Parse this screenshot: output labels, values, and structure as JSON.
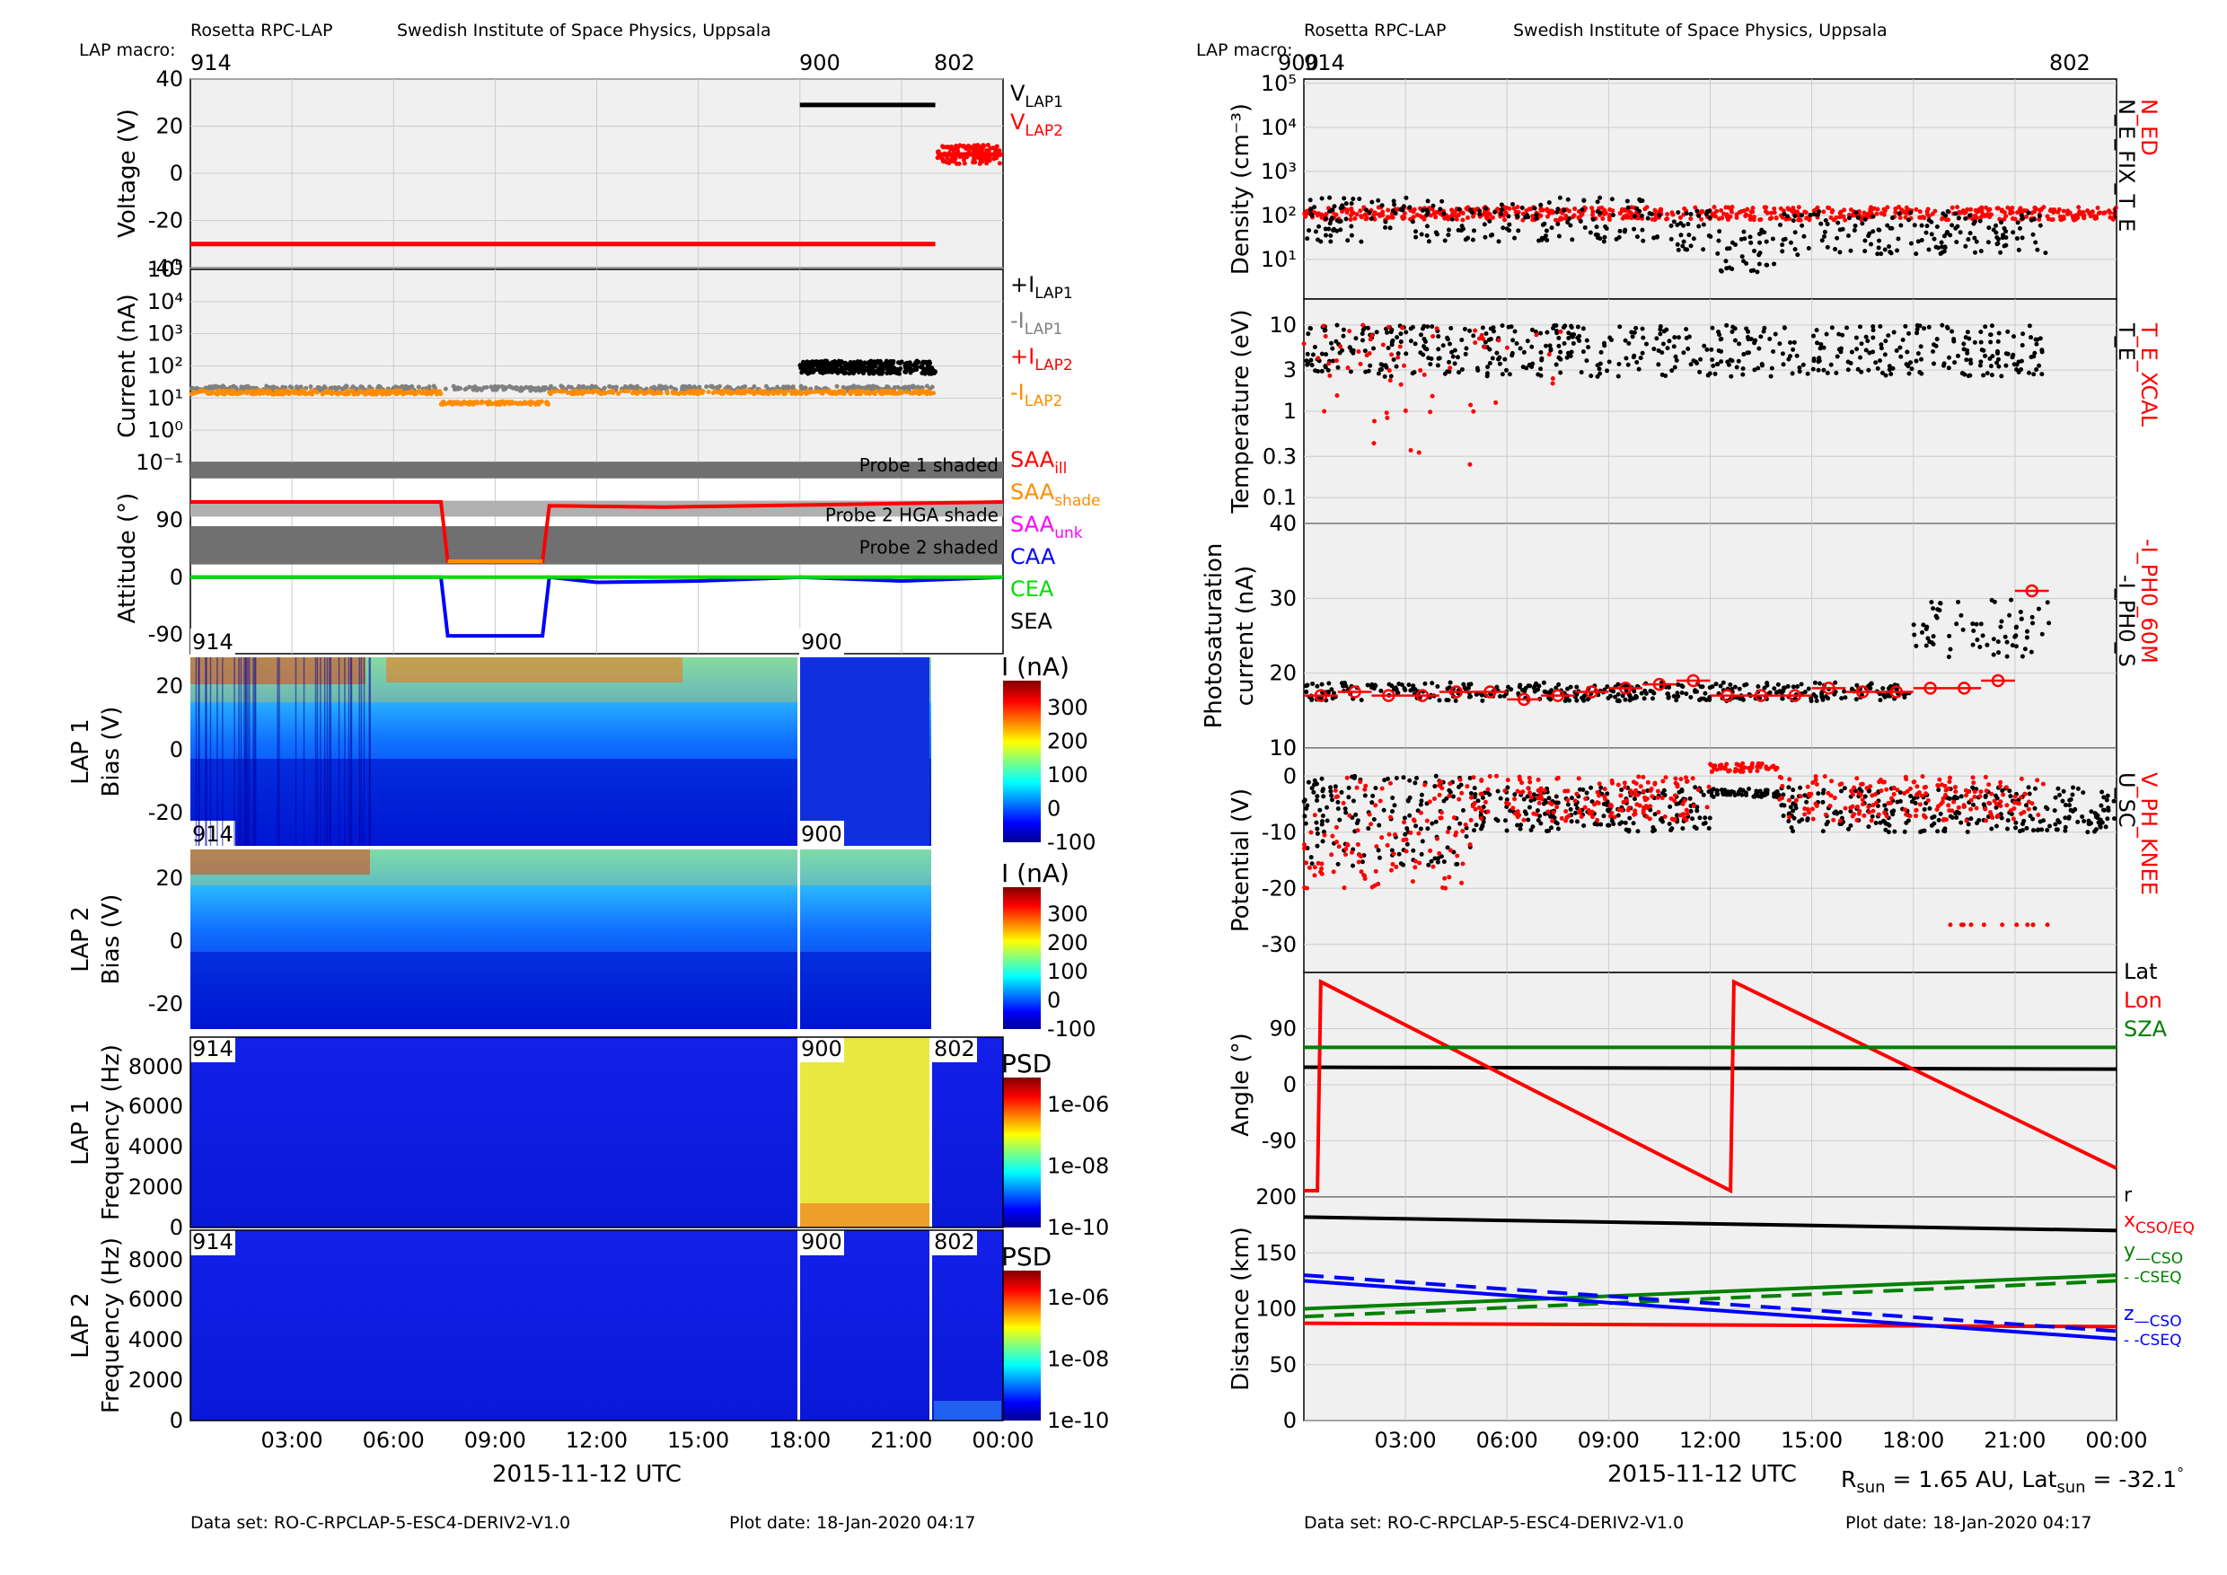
{
  "left": {
    "header": {
      "org": "Rosetta RPC-LAP",
      "institute": "Swedish Institute of Space Physics, Uppsala",
      "macro_label": "LAP macro:",
      "macros": [
        "914",
        "900",
        "802"
      ]
    },
    "xlabel": "2015-11-12 UTC",
    "xticks": [
      "03:00",
      "06:00",
      "09:00",
      "12:00",
      "15:00",
      "18:00",
      "21:00",
      "00:00"
    ],
    "footer": {
      "dataset": "Data set: RO-C-RPCLAP-5-ESC4-DERIV2-V1.0",
      "plotdate": "Plot date: 18-Jan-2020 04:17"
    },
    "macro_tags": [
      "914",
      "900",
      "802"
    ]
  },
  "right": {
    "header": {
      "org": "Rosetta RPC-LAP",
      "institute": "Swedish Institute of Space Physics, Uppsala",
      "macro_label": "LAP macro:",
      "macros": [
        "914",
        "900",
        "802"
      ]
    },
    "xlabel": "2015-11-12 UTC",
    "xticks": [
      "03:00",
      "06:00",
      "09:00",
      "12:00",
      "15:00",
      "18:00",
      "21:00",
      "00:00"
    ],
    "footer": {
      "dataset": "Data set: RO-C-RPCLAP-5-ESC4-DERIV2-V1.0",
      "plotdate": "Plot date: 18-Jan-2020 04:17"
    },
    "rsun": "R",
    "rsun_sub": "sun",
    "rsun_val": " = 1.65 AU, Lat",
    "lat_sub": "sun",
    "lat_val": " = -32.1",
    "deg": "°"
  },
  "colors": {
    "red": "#ff0000",
    "black": "#000000",
    "gray": "#808080",
    "orange": "#ff8c00",
    "magenta": "#ff00ff",
    "blue": "#0000ff",
    "lime": "#00dd00",
    "green": "#008000",
    "panel_bg": "#f0f0f0",
    "grid": "#cccccc"
  },
  "chart_data": [
    {
      "panel": "voltage",
      "type": "line",
      "ylabel": "Voltage (V)",
      "ylim": [
        -40,
        40
      ],
      "yticks": [
        "40",
        "20",
        "0",
        "-20",
        "-40"
      ],
      "series": [
        {
          "name": "V_LAP1",
          "color": "black",
          "x": [
            18.0,
            22.0
          ],
          "y": [
            29,
            29
          ]
        },
        {
          "name": "V_LAP2",
          "color": "red",
          "x": [
            0.0,
            22.0
          ],
          "y": [
            -30,
            -30
          ]
        },
        {
          "name": "V_LAP2_802",
          "color": "red",
          "x": [
            22.05,
            23.95
          ],
          "y": [
            8,
            8
          ]
        }
      ],
      "legend": [
        {
          "main": "V",
          "sub": "LAP1",
          "color": "black"
        },
        {
          "main": "V",
          "sub": "LAP2",
          "color": "red"
        }
      ]
    },
    {
      "panel": "current",
      "type": "scatter",
      "ylabel": "Current (nA)",
      "yscale": "log",
      "ylim": [
        0.1,
        100000
      ],
      "yticks": [
        "10⁴",
        "10³",
        "10²",
        "10¹",
        "10⁰",
        "10⁻¹"
      ],
      "series": [
        {
          "name": "+I_LAP1",
          "color": "black",
          "x": [
            18.0,
            22.0
          ],
          "y": [
            90,
            90
          ]
        },
        {
          "name": "-I_LAP1",
          "color": "gray",
          "x": [
            0.0,
            22.0
          ],
          "y": [
            20,
            20
          ]
        },
        {
          "name": "-I_LAP2",
          "color": "orange",
          "x": [
            0.0,
            22.0
          ],
          "y": [
            15,
            15
          ]
        }
      ],
      "legend": [
        {
          "main": "+I",
          "sub": "LAP1",
          "color": "black"
        },
        {
          "main": "-I",
          "sub": "LAP1",
          "color": "gray"
        },
        {
          "main": "+I",
          "sub": "LAP2",
          "color": "red"
        },
        {
          "main": "-I",
          "sub": "LAP2",
          "color": "orange"
        }
      ]
    },
    {
      "panel": "attitude",
      "type": "line",
      "ylabel": "Attitude (°)",
      "ylim": [
        -120,
        180
      ],
      "yticks": [
        "90",
        "0",
        "-90"
      ],
      "shades": [
        {
          "label": "Probe 1 shaded"
        },
        {
          "label": "Probe 2 HGA shade"
        },
        {
          "label": "Probe 2 shaded"
        }
      ],
      "series": [
        {
          "name": "SAA_ill",
          "color": "red",
          "x": [
            0,
            7.4,
            10.6,
            24
          ],
          "y": [
            118,
            118,
            118,
            118
          ]
        },
        {
          "name": "SAA_shade",
          "color": "orange",
          "x": [
            7.6,
            10.4
          ],
          "y": [
            25,
            25
          ]
        },
        {
          "name": "CAA",
          "color": "blue",
          "x": [
            0,
            7.4,
            7.6,
            10.4,
            10.6,
            24
          ],
          "y": [
            0,
            0,
            -92,
            -92,
            0,
            0
          ]
        },
        {
          "name": "CEA",
          "color": "lime",
          "x": [
            0,
            24
          ],
          "y": [
            0,
            0
          ]
        }
      ],
      "legend": [
        {
          "main": "SAA",
          "sub": "ill",
          "color": "red"
        },
        {
          "main": "SAA",
          "sub": "shade",
          "color": "orange"
        },
        {
          "main": "SAA",
          "sub": "unk",
          "color": "magenta"
        },
        {
          "main": "CAA",
          "sub": "",
          "color": "blue"
        },
        {
          "main": "CEA",
          "sub": "",
          "color": "lime"
        },
        {
          "main": "SEA",
          "sub": "",
          "color": "black"
        }
      ]
    },
    {
      "panel": "lap1_bias",
      "type": "heatmap",
      "ylabel": "LAP 1 Bias (V)",
      "yticks": [
        "20",
        "0",
        "-20"
      ],
      "cbar_label": "I (nA)",
      "cbar_ticks": [
        "300",
        "200",
        "100",
        "0",
        "-100"
      ]
    },
    {
      "panel": "lap2_bias",
      "type": "heatmap",
      "ylabel": "LAP 2 Bias (V)",
      "yticks": [
        "20",
        "0",
        "-20"
      ],
      "cbar_label": "I (nA)",
      "cbar_ticks": [
        "300",
        "200",
        "100",
        "0",
        "-100"
      ]
    },
    {
      "panel": "lap1_freq",
      "type": "heatmap",
      "ylabel": "LAP 1 Frequency (Hz)",
      "yticks": [
        "8000",
        "6000",
        "4000",
        "2000",
        "0"
      ],
      "cbar_label": "PSD",
      "cbar_ticks": [
        "1e-06",
        "1e-08",
        "1e-10"
      ]
    },
    {
      "panel": "lap2_freq",
      "type": "heatmap",
      "ylabel": "LAP 2 Frequency (Hz)",
      "yticks": [
        "8000",
        "6000",
        "4000",
        "2000",
        "0"
      ],
      "cbar_label": "PSD",
      "cbar_ticks": [
        "1e-06",
        "1e-08",
        "1e-10"
      ]
    },
    {
      "panel": "density",
      "type": "scatter",
      "ylabel": "Density (cm⁻³)",
      "yscale": "log",
      "yticks": [
        "10⁵",
        "10⁴",
        "10³",
        "10²",
        "10¹"
      ],
      "series": [
        {
          "name": "N_ED",
          "color": "red",
          "x": [
            0,
            24
          ],
          "y": [
            110,
            110
          ]
        },
        {
          "name": "N_E_FIX_T_E",
          "color": "black",
          "x": [
            0,
            24
          ],
          "y": [
            45,
            45
          ]
        }
      ],
      "labels": [
        {
          "text": "N_ED",
          "color": "red"
        },
        {
          "text": "N_E_FIX_T_E",
          "color": "black"
        }
      ]
    },
    {
      "panel": "temperature",
      "type": "scatter",
      "ylabel": "Temperature (eV)",
      "yscale": "log",
      "yticks": [
        "10",
        "3",
        "1",
        "0.3",
        "0.1"
      ],
      "series": [
        {
          "name": "T_E",
          "color": "black",
          "x": [
            0,
            24
          ],
          "y": [
            5,
            5
          ]
        }
      ],
      "labels": [
        {
          "text": "T_E_XCAL",
          "color": "red"
        },
        {
          "text": "T_E",
          "color": "black"
        }
      ]
    },
    {
      "panel": "photosat",
      "type": "scatter",
      "ylabel": "Photosaturation current (nA)",
      "yticks": [
        "40",
        "30",
        "20",
        "10"
      ],
      "series": [
        {
          "name": "-I_PH0_S",
          "color": "black",
          "x": [
            0,
            18
          ],
          "y": [
            17.5,
            17.5
          ]
        },
        {
          "name": "-I_PH0_60M",
          "color": "red",
          "x": [
            0.5,
            1.5,
            2.5,
            3.5,
            4.5,
            5.5,
            6.5,
            7.5,
            8.5,
            9.5,
            10.5,
            11.5,
            12.5,
            13.5,
            14.5,
            15.5,
            16.5,
            17.5,
            18.5,
            19.5,
            20.5,
            21.5
          ],
          "y": [
            17,
            17.5,
            17,
            17,
            17.5,
            17.5,
            16.5,
            17,
            17.5,
            18,
            18.5,
            19,
            17,
            17,
            17,
            18,
            17.5,
            17.5,
            18,
            18,
            19,
            31
          ]
        }
      ],
      "labels": [
        {
          "text": "-I_PH0_60M",
          "color": "red"
        },
        {
          "text": "-I_PH0_S",
          "color": "black"
        }
      ]
    },
    {
      "panel": "potential",
      "type": "scatter",
      "ylabel": "Potential (V)",
      "yticks": [
        "0",
        "-10",
        "-20",
        "-30"
      ],
      "series": [
        {
          "name": "U_SC",
          "color": "black",
          "x": [
            0,
            24
          ],
          "y": [
            -6,
            -6
          ]
        },
        {
          "name": "V_PH_KNEE",
          "color": "red",
          "x": [
            0,
            24
          ],
          "y": [
            -4,
            -4
          ]
        }
      ],
      "labels": [
        {
          "text": "V_PH_KNEE",
          "color": "red"
        },
        {
          "text": "U_SC",
          "color": "black"
        }
      ]
    },
    {
      "panel": "angle",
      "type": "line",
      "ylabel": "Angle (°)",
      "ylim": [
        -180,
        180
      ],
      "yticks": [
        "90",
        "0",
        "-90"
      ],
      "series": [
        {
          "name": "Lat",
          "color": "black",
          "x": [
            0,
            24
          ],
          "y": [
            28,
            25
          ]
        },
        {
          "name": "Lon",
          "color": "red",
          "x": [
            0,
            0.4,
            0.5,
            12.6,
            12.7,
            24
          ],
          "y": [
            -170,
            -170,
            165,
            -170,
            165,
            -134
          ]
        },
        {
          "name": "SZA",
          "color": "green",
          "x": [
            0,
            24
          ],
          "y": [
            60,
            60
          ]
        }
      ],
      "legend": [
        {
          "main": "Lat",
          "sub": "",
          "color": "black"
        },
        {
          "main": "Lon",
          "sub": "",
          "color": "red"
        },
        {
          "main": "SZA",
          "sub": "",
          "color": "green"
        }
      ]
    },
    {
      "panel": "distance",
      "type": "line",
      "ylabel": "Distance (km)",
      "ylim": [
        0,
        200
      ],
      "yticks": [
        "200",
        "150",
        "100",
        "50",
        "0"
      ],
      "series": [
        {
          "name": "r",
          "color": "black",
          "dash": false,
          "x": [
            0,
            24
          ],
          "y": [
            182,
            170
          ]
        },
        {
          "name": "x_CSO/EQ",
          "color": "red",
          "dash": false,
          "x": [
            0,
            24
          ],
          "y": [
            87,
            84
          ]
        },
        {
          "name": "y_CSO",
          "color": "green",
          "dash": false,
          "x": [
            0,
            24
          ],
          "y": [
            100,
            130
          ]
        },
        {
          "name": "y_CSEQ",
          "color": "green",
          "dash": true,
          "x": [
            0,
            24
          ],
          "y": [
            93,
            125
          ]
        },
        {
          "name": "z_CSO",
          "color": "blue",
          "dash": false,
          "x": [
            0,
            24
          ],
          "y": [
            125,
            73
          ]
        },
        {
          "name": "z_CSEQ",
          "color": "blue",
          "dash": true,
          "x": [
            0,
            24
          ],
          "y": [
            130,
            80
          ]
        }
      ],
      "legend": [
        {
          "main": "r",
          "sub": "",
          "color": "black"
        },
        {
          "main": "x",
          "sub": "CSO/EQ",
          "color": "red"
        },
        {
          "main": "y",
          "sub": "—CSO",
          "color": "green"
        },
        {
          "main": "",
          "sub": "- -CSEQ",
          "color": "green"
        },
        {
          "main": "z",
          "sub": "—CSO",
          "color": "blue"
        },
        {
          "main": "",
          "sub": "- -CSEQ",
          "color": "blue"
        }
      ]
    }
  ]
}
